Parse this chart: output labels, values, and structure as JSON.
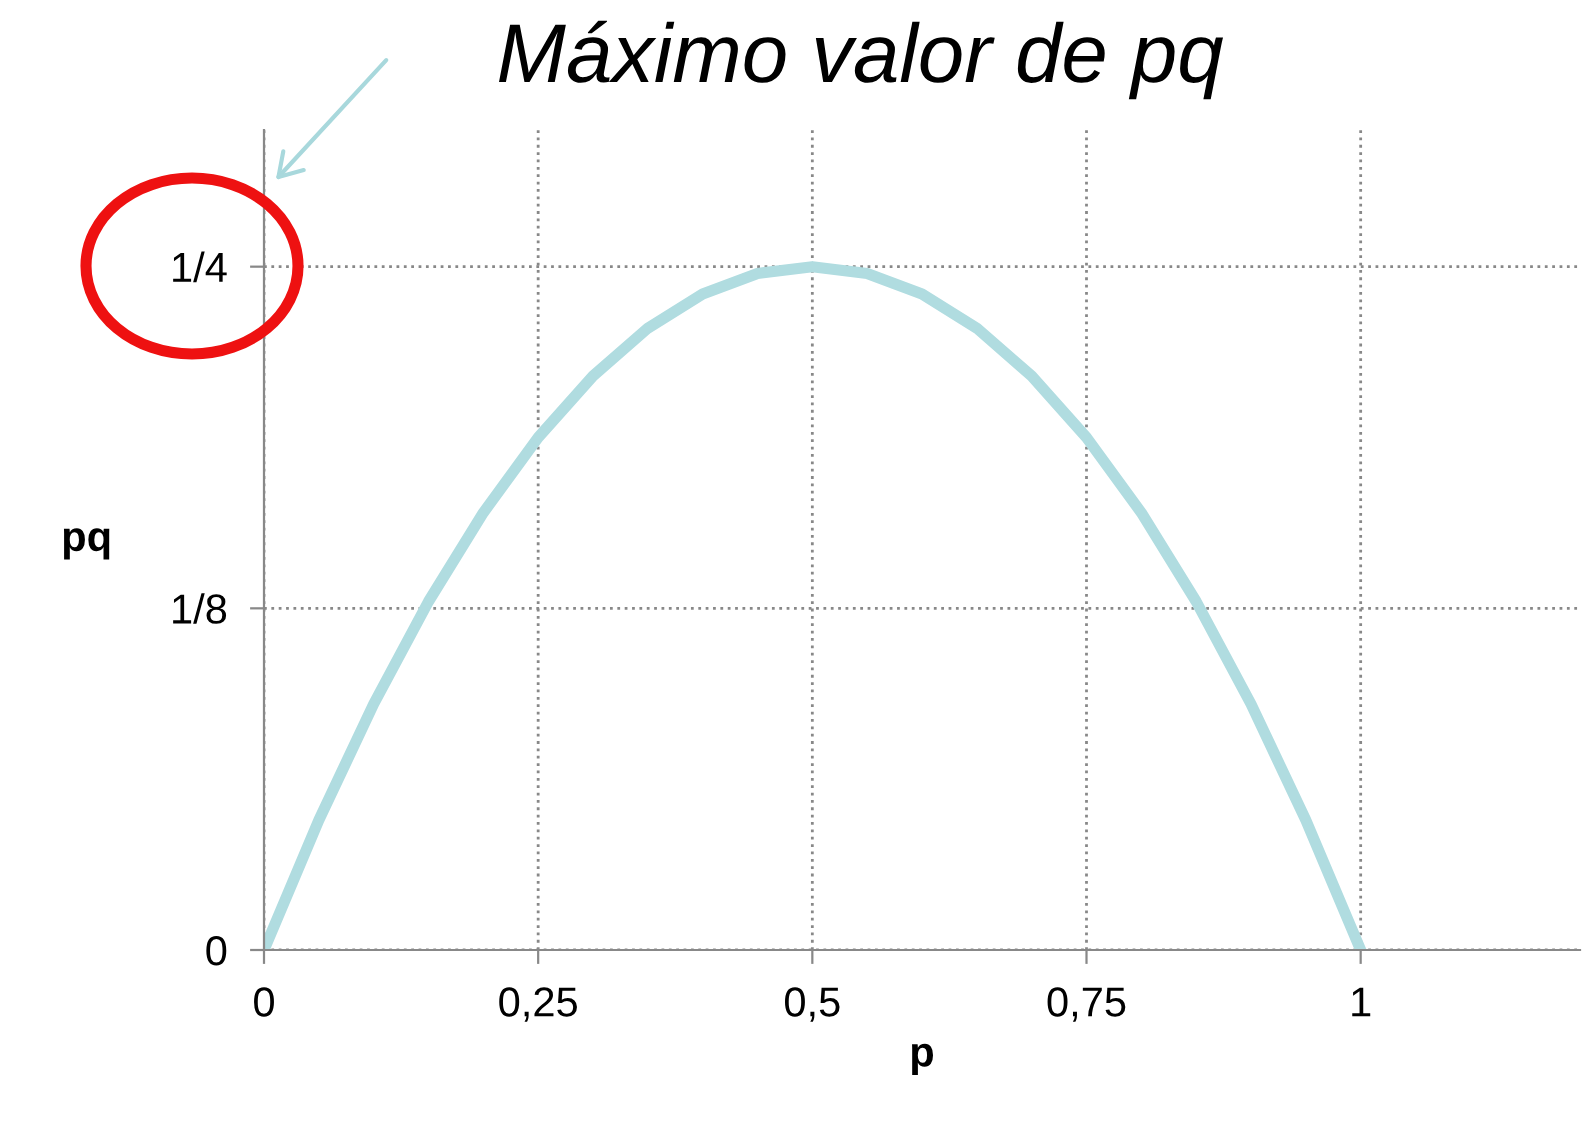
{
  "chart_data": {
    "type": "line",
    "title": "Máximo valor de pq",
    "xlabel": "p",
    "ylabel": "pq",
    "x": [
      0,
      0.05,
      0.1,
      0.15,
      0.2,
      0.25,
      0.3,
      0.35,
      0.4,
      0.45,
      0.5,
      0.55,
      0.6,
      0.65,
      0.7,
      0.75,
      0.8,
      0.85,
      0.9,
      0.95,
      1
    ],
    "series": [
      {
        "color": "#b0dce0",
        "values": [
          0,
          0.0475,
          0.09,
          0.1275,
          0.16,
          0.1875,
          0.21,
          0.2275,
          0.24,
          0.2475,
          0.25,
          0.2475,
          0.24,
          0.2275,
          0.21,
          0.1875,
          0.16,
          0.1275,
          0.09,
          0.0475,
          0
        ]
      }
    ],
    "xlim": [
      0,
      1.2
    ],
    "ylim": [
      0,
      0.3
    ],
    "xticks": [
      0,
      {
        "value": 0.25,
        "label": "0,25"
      },
      {
        "value": 0.5,
        "label": "0,5"
      },
      {
        "value": 0.75,
        "label": "0,75"
      },
      1
    ],
    "yticks": [
      0,
      {
        "value": 0.125,
        "label": "1/8"
      },
      {
        "value": 0.25,
        "label": "1/4"
      }
    ],
    "grid": true,
    "marker": "none",
    "line_style": "solid"
  }
}
